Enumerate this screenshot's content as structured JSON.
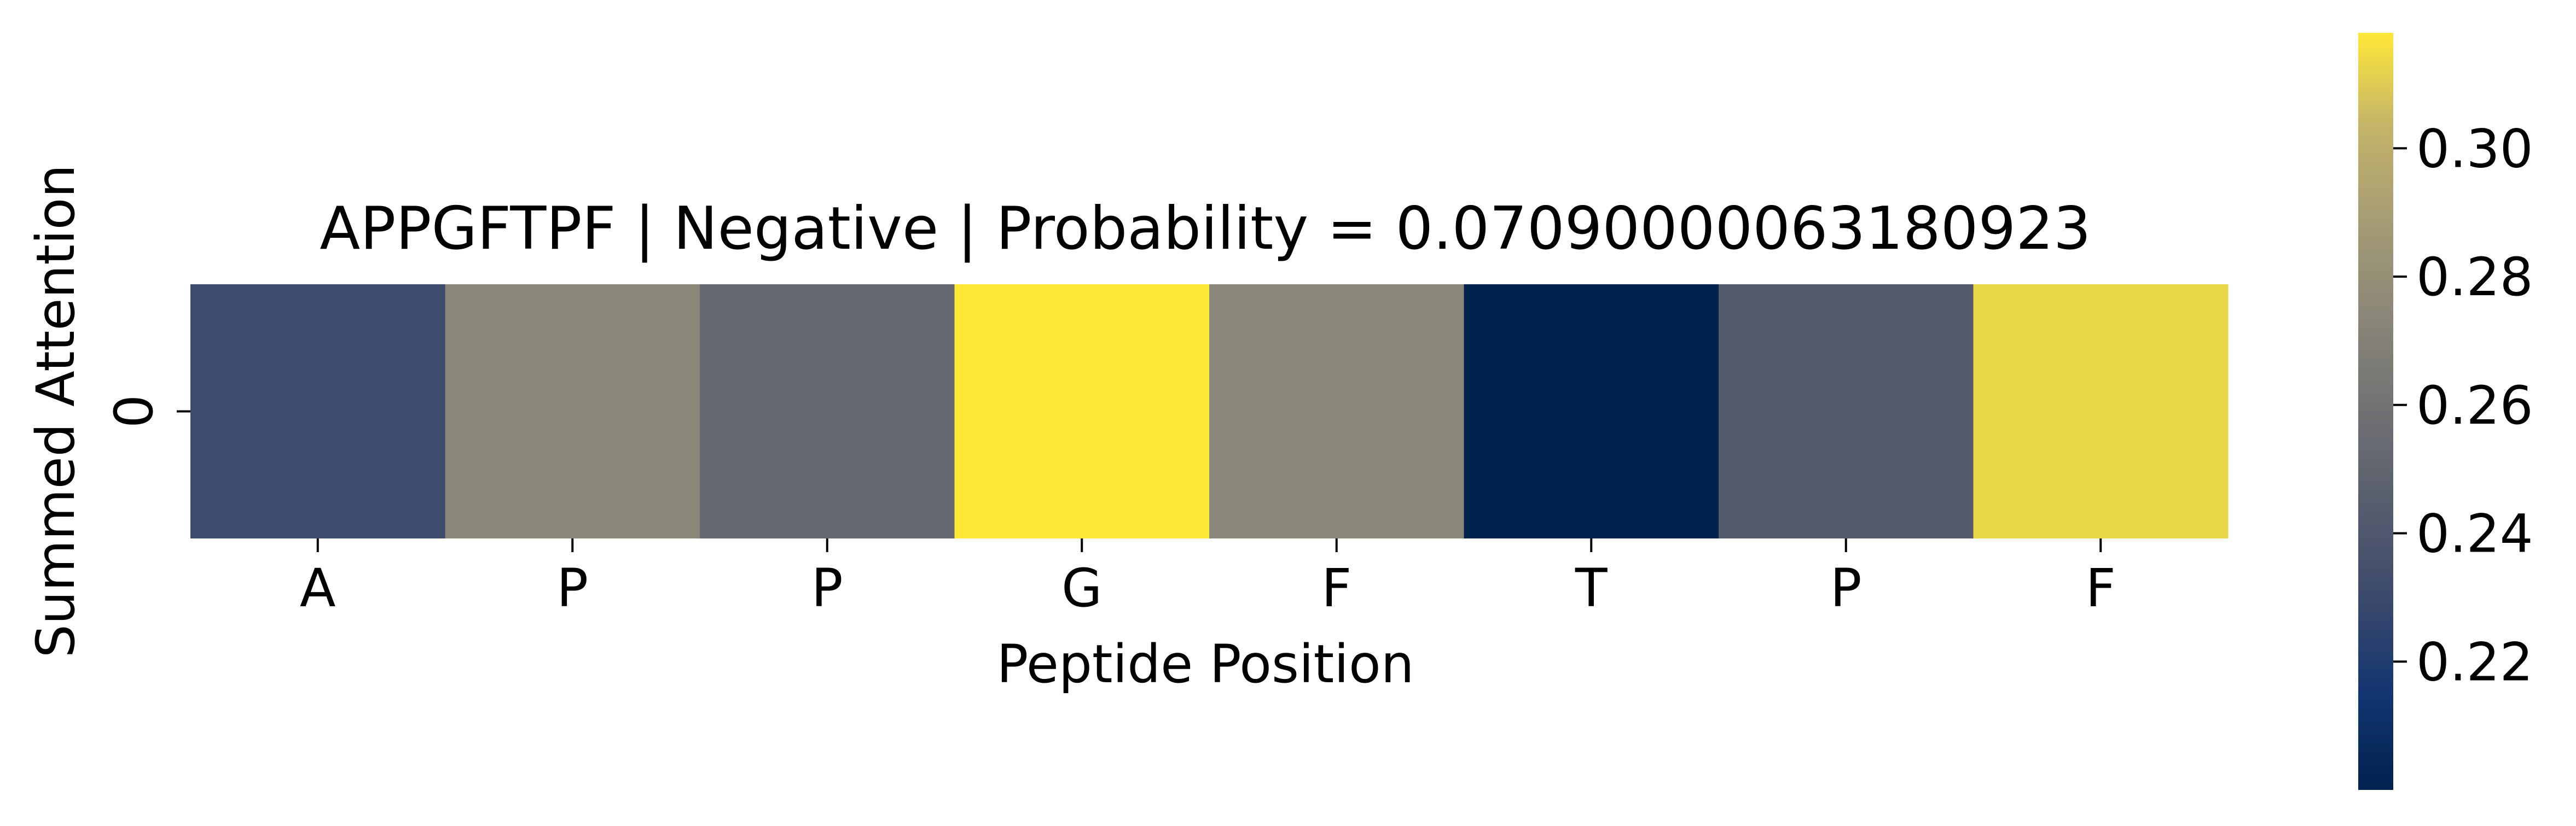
{
  "chart_data": {
    "type": "heatmap",
    "title": "APPGFTPF | Negative | Probability = 0.07090000063180923",
    "xlabel": "Peptide Position",
    "ylabel": "Summed Attention",
    "x_categories": [
      "A",
      "P",
      "P",
      "G",
      "F",
      "T",
      "P",
      "F"
    ],
    "y_categories": [
      "0"
    ],
    "values": [
      [
        0.231,
        0.274,
        0.253,
        0.318,
        0.274,
        0.2,
        0.243,
        0.313
      ]
    ],
    "colormap": "cividis",
    "vmin": 0.2,
    "vmax": 0.318,
    "colorbar": {
      "ticks": [
        0.22,
        0.24,
        0.26,
        0.28,
        0.3
      ],
      "tick_labels": [
        "0.22",
        "0.24",
        "0.26",
        "0.28",
        "0.30"
      ],
      "placement": "right"
    },
    "grid": false
  }
}
